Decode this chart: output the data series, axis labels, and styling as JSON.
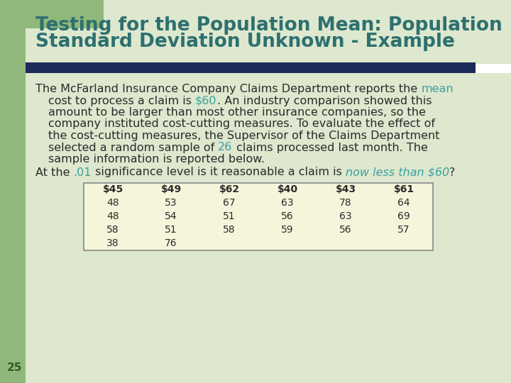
{
  "title_line1": "Testing for the Population Mean: Population",
  "title_line2": "Standard Deviation Unknown - Example",
  "title_color": "#2E7070",
  "title_fontsize": 19,
  "bg_color": "#DDE8CE",
  "slide_bg": "#FFFFFF",
  "left_bar_color": "#8FB87A",
  "blue_bar_color": "#1C2B5A",
  "body_text_color": "#2B2B2B",
  "highlight_color": "#3CA0A0",
  "table_header": [
    "$45",
    "$49",
    "$62",
    "$40",
    "$43",
    "$61"
  ],
  "table_rows": [
    [
      "48",
      "53",
      "67",
      "63",
      "78",
      "64"
    ],
    [
      "48",
      "54",
      "51",
      "56",
      "63",
      "69"
    ],
    [
      "58",
      "51",
      "58",
      "59",
      "56",
      "57"
    ],
    [
      "38",
      "76",
      "",
      "",
      "",
      ""
    ]
  ],
  "table_bg": "#F5F5DC",
  "page_number": "25",
  "font_size_body": 11.5,
  "font_size_table": 10
}
